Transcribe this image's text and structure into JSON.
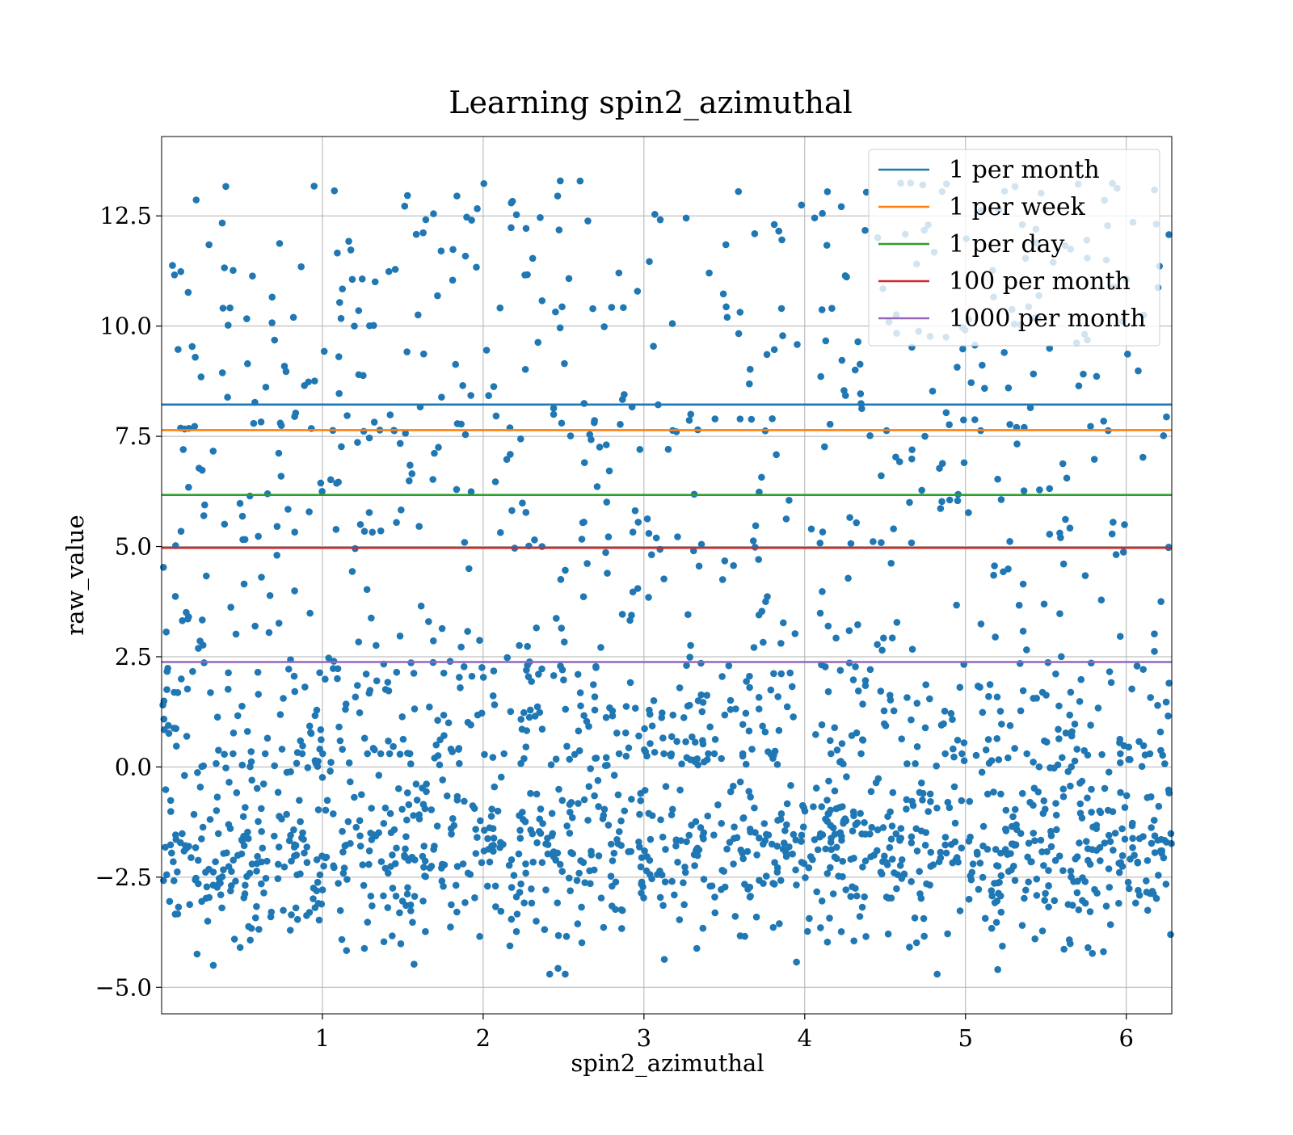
{
  "chart_data": {
    "type": "scatter",
    "title": "Learning spin2_azimuthal",
    "xlabel": "spin2_azimuthal",
    "ylabel": "raw_value",
    "xlim": [
      0.0,
      6.283
    ],
    "ylim": [
      -5.6,
      14.3
    ],
    "xticks": [
      1,
      2,
      3,
      4,
      5,
      6
    ],
    "xtick_labels": [
      "1",
      "2",
      "3",
      "4",
      "5",
      "6"
    ],
    "yticks": [
      -5.0,
      -2.5,
      0.0,
      2.5,
      5.0,
      7.5,
      10.0,
      12.5
    ],
    "ytick_labels": [
      "−5.0",
      "−2.5",
      "0.0",
      "2.5",
      "5.0",
      "7.5",
      "10.0",
      "12.5"
    ],
    "grid": true,
    "legend_position": "top-right",
    "scatter_color": "#1f77b4",
    "scatter_points": 2000,
    "scatter_generation": {
      "seed": 12345,
      "weights": [
        0.55,
        0.18,
        0.14,
        0.13
      ],
      "bands": [
        [
          -4.7,
          0.3
        ],
        [
          0.0,
          2.4
        ],
        [
          2.4,
          8.0
        ],
        [
          7.6,
          13.3
        ]
      ]
    },
    "series": [
      {
        "name": "1 per month",
        "value": 8.22,
        "color": "#1f77b4"
      },
      {
        "name": "1 per week",
        "value": 7.64,
        "color": "#ff7f0e"
      },
      {
        "name": "1 per day",
        "value": 6.17,
        "color": "#2ca02c"
      },
      {
        "name": "100 per month",
        "value": 4.97,
        "color": "#d62728"
      },
      {
        "name": "1000 per month",
        "value": 2.38,
        "color": "#9467bd"
      }
    ]
  }
}
